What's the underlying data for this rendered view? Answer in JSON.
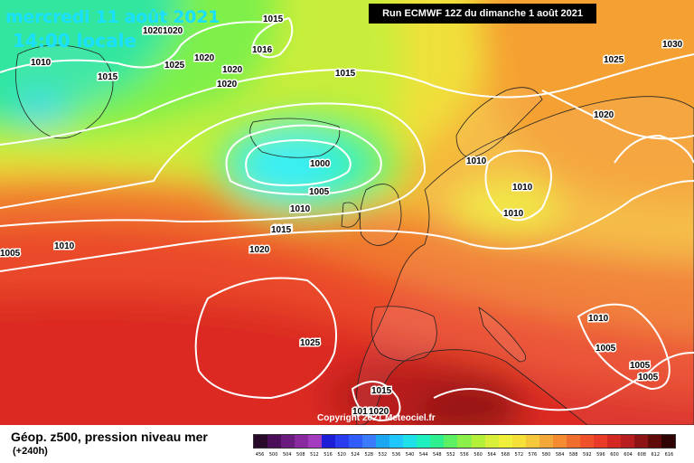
{
  "header": {
    "date": "mercredi 11 août 2021",
    "time": "14:00 locale",
    "run": "Run ECMWF 12Z du dimanche 1 août 2021"
  },
  "map": {
    "copyright": "Copyright 2021 Meteociel.fr",
    "isobar_labels": [
      "1015",
      "1020",
      "1020",
      "1025",
      "1020",
      "1020",
      "1020",
      "1016",
      "1015",
      "1010",
      "1015",
      "1025",
      "1030",
      "1020",
      "1015",
      "1010",
      "1000",
      "1005",
      "1010",
      "1010",
      "1010",
      "1015",
      "1020",
      "1005",
      "1010",
      "1010",
      "1025",
      "1005",
      "1005",
      "1005",
      "1015",
      "1010",
      "1020"
    ]
  },
  "legend": {
    "title": "Géop. z500, pression niveau mer",
    "subtitle": "(+240h)",
    "scale_values": [
      "456",
      "500",
      "504",
      "508",
      "512",
      "516",
      "520",
      "524",
      "528",
      "532",
      "536",
      "540",
      "544",
      "548",
      "552",
      "556",
      "560",
      "564",
      "568",
      "572",
      "576",
      "580",
      "584",
      "588",
      "592",
      "596",
      "600",
      "604",
      "608",
      "612",
      "616"
    ],
    "scale_colors": [
      "#2a0a2a",
      "#4b0f5a",
      "#6b1a7e",
      "#8a2aa0",
      "#a43cc0",
      "#1e1ed7",
      "#2a3cf0",
      "#2f5bff",
      "#3b7cff",
      "#1da7f0",
      "#20c8ff",
      "#1ee0e8",
      "#1ef0c0",
      "#2ef090",
      "#5ef064",
      "#8cf04a",
      "#b4f03a",
      "#d8f03a",
      "#f0f03a",
      "#f5e03a",
      "#f5c83a",
      "#f5a83a",
      "#f58c32",
      "#f06e2e",
      "#f0502a",
      "#ea3a2a",
      "#d22a22",
      "#b81e1e",
      "#8c1414",
      "#600a0a",
      "#300404"
    ]
  }
}
